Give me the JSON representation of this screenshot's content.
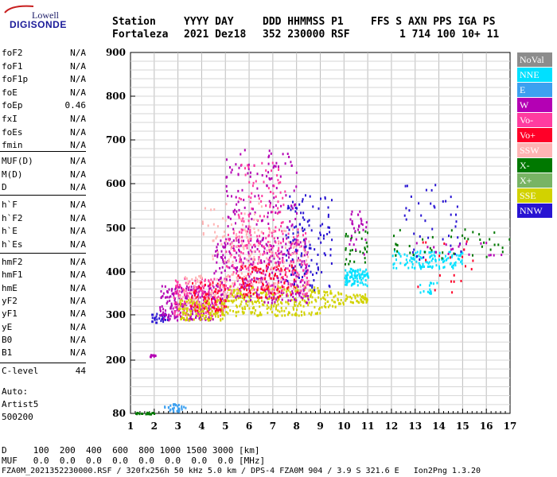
{
  "logo": {
    "top": "Lowell",
    "bottom": "DIGISONDE"
  },
  "header": {
    "labels": [
      "Station",
      "YYYY DAY",
      "DDD HHMMSS P1",
      "FFS S AXN PPS IGA PS"
    ],
    "values": [
      "Fortaleza",
      "2021 Dez18",
      "352 230000 RSF",
      "1 714 100 10+ 11"
    ]
  },
  "params": {
    "group1": [
      {
        "name": "foF2",
        "value": "N/A"
      },
      {
        "name": "foF1",
        "value": "N/A"
      },
      {
        "name": "foF1p",
        "value": "N/A"
      },
      {
        "name": "foE",
        "value": "N/A"
      },
      {
        "name": "foEp",
        "value": "0.46"
      },
      {
        "name": "fxI",
        "value": "N/A"
      },
      {
        "name": "foEs",
        "value": "N/A"
      },
      {
        "name": "fmin",
        "value": "N/A"
      }
    ],
    "group2": [
      {
        "name": "MUF(D)",
        "value": "N/A"
      },
      {
        "name": "M(D)",
        "value": "N/A"
      },
      {
        "name": "D",
        "value": "N/A"
      }
    ],
    "group3": [
      {
        "name": "h`F",
        "value": "N/A"
      },
      {
        "name": "h`F2",
        "value": "N/A"
      },
      {
        "name": "h`E",
        "value": "N/A"
      },
      {
        "name": "h`Es",
        "value": "N/A"
      }
    ],
    "group4": [
      {
        "name": "hmF2",
        "value": "N/A"
      },
      {
        "name": "hmF1",
        "value": "N/A"
      },
      {
        "name": "hmE",
        "value": "N/A"
      },
      {
        "name": "yF2",
        "value": "N/A"
      },
      {
        "name": "yF1",
        "value": "N/A"
      },
      {
        "name": "yE",
        "value": "N/A"
      },
      {
        "name": "B0",
        "value": "N/A"
      },
      {
        "name": "B1",
        "value": "N/A"
      }
    ],
    "clevel": {
      "name": "C-level",
      "value": "44"
    },
    "auto": [
      "Auto:",
      "Artist5",
      "500200"
    ]
  },
  "legend": [
    {
      "label": "NoVal",
      "color": "#8c8c8c"
    },
    {
      "label": "NNE",
      "color": "#00e0ff"
    },
    {
      "label": "E",
      "color": "#3ca0f0"
    },
    {
      "label": "W",
      "color": "#b400b4"
    },
    {
      "label": "Vo-",
      "color": "#ff3ca0"
    },
    {
      "label": "Vo+",
      "color": "#ff0028"
    },
    {
      "label": "SSW",
      "color": "#ffb4b4"
    },
    {
      "label": "X-",
      "color": "#007800"
    },
    {
      "label": "X+",
      "color": "#78b464"
    },
    {
      "label": "SSE",
      "color": "#d2d200"
    },
    {
      "label": "NNW",
      "color": "#2814d2"
    }
  ],
  "footer": {
    "line1": "D     100  200  400  600  800 1000 1500 3000 [km]",
    "line2": "MUF   0.0  0.0  0.0  0.0  0.0  0.0  0.0  0.0 [MHz]",
    "line3": "FZA0M_2021352230000.RSF / 320fx256h 50 kHz 5.0 km / DPS-4 FZA0M 904 / 3.9 S 321.6 E   Ion2Png 1.3.20"
  },
  "chart_data": {
    "type": "scatter",
    "xlim": [
      1,
      17
    ],
    "ylim": [
      80,
      900
    ],
    "x_ticks": [
      1,
      2,
      3,
      4,
      5,
      6,
      7,
      8,
      9,
      10,
      11,
      12,
      13,
      14,
      15,
      16,
      17
    ],
    "y_ticks": [
      80,
      200,
      300,
      400,
      500,
      600,
      700,
      800,
      900
    ],
    "xlabel": "",
    "ylabel": "",
    "grid": true,
    "clusters": [
      {
        "color": "#007800",
        "x": [
          1.1,
          2.0
        ],
        "y": [
          80,
          84
        ],
        "n": 20
      },
      {
        "color": "#3ca0f0",
        "x": [
          2.4,
          3.3
        ],
        "y": [
          86,
          104
        ],
        "n": 30
      },
      {
        "color": "#b400b4",
        "x": [
          1.8,
          2.2
        ],
        "y": [
          208,
          214
        ],
        "n": 8
      },
      {
        "color": "#2814d2",
        "x": [
          1.8,
          2.6
        ],
        "y": [
          285,
          305
        ],
        "n": 30
      },
      {
        "color": "#b400b4",
        "x": [
          2.2,
          4.5
        ],
        "y": [
          290,
          370
        ],
        "n": 230
      },
      {
        "color": "#ff3ca0",
        "x": [
          2.8,
          5.0
        ],
        "y": [
          300,
          390
        ],
        "n": 170
      },
      {
        "color": "#d2d200",
        "x": [
          3.0,
          5.0
        ],
        "y": [
          290,
          340
        ],
        "n": 140
      },
      {
        "color": "#ff0028",
        "x": [
          3.5,
          5.0
        ],
        "y": [
          310,
          380
        ],
        "n": 70
      },
      {
        "color": "#ffb4b4",
        "x": [
          3.0,
          5.5
        ],
        "y": [
          320,
          400
        ],
        "n": 80
      },
      {
        "color": "#d2d200",
        "x": [
          5.0,
          9.0
        ],
        "y": [
          300,
          370
        ],
        "n": 260
      },
      {
        "color": "#b400b4",
        "x": [
          4.5,
          8.5
        ],
        "y": [
          330,
          480
        ],
        "n": 320
      },
      {
        "color": "#ff3ca0",
        "x": [
          5.0,
          8.5
        ],
        "y": [
          350,
          500
        ],
        "n": 220
      },
      {
        "color": "#ff0028",
        "x": [
          5.5,
          8.0
        ],
        "y": [
          340,
          420
        ],
        "n": 110
      },
      {
        "color": "#ffb4b4",
        "x": [
          5.0,
          8.5
        ],
        "y": [
          350,
          500
        ],
        "n": 110
      },
      {
        "color": "#2814d2",
        "x": [
          7.5,
          9.5
        ],
        "y": [
          360,
          580
        ],
        "n": 110
      },
      {
        "color": "#b400b4",
        "x": [
          5.0,
          8.0
        ],
        "y": [
          500,
          680
        ],
        "n": 110
      },
      {
        "color": "#ff3ca0",
        "x": [
          5.5,
          7.5
        ],
        "y": [
          500,
          650
        ],
        "n": 70
      },
      {
        "color": "#ffb4b4",
        "x": [
          4.0,
          6.5
        ],
        "y": [
          420,
          560
        ],
        "n": 60
      },
      {
        "color": "#d2d200",
        "x": [
          9.0,
          10.0
        ],
        "y": [
          320,
          360
        ],
        "n": 40
      },
      {
        "color": "#00e0ff",
        "x": [
          10.0,
          11.0
        ],
        "y": [
          370,
          410
        ],
        "n": 90
      },
      {
        "color": "#d2d200",
        "x": [
          10.0,
          11.0
        ],
        "y": [
          330,
          350
        ],
        "n": 40
      },
      {
        "color": "#007800",
        "x": [
          10.0,
          11.0
        ],
        "y": [
          420,
          500
        ],
        "n": 30
      },
      {
        "color": "#b400b4",
        "x": [
          10.2,
          11.0
        ],
        "y": [
          440,
          540
        ],
        "n": 30
      },
      {
        "color": "#00e0ff",
        "x": [
          12.0,
          15.0
        ],
        "y": [
          410,
          450
        ],
        "n": 120
      },
      {
        "color": "#2814d2",
        "x": [
          12.5,
          15.0
        ],
        "y": [
          430,
          600
        ],
        "n": 40
      },
      {
        "color": "#007800",
        "x": [
          12.0,
          17.0
        ],
        "y": [
          430,
          500
        ],
        "n": 40
      },
      {
        "color": "#b400b4",
        "x": [
          13.0,
          17.0
        ],
        "y": [
          440,
          470
        ],
        "n": 20
      },
      {
        "color": "#00e0ff",
        "x": [
          13.0,
          14.0
        ],
        "y": [
          350,
          380
        ],
        "n": 15
      },
      {
        "color": "#ff0028",
        "x": [
          13.0,
          15.5
        ],
        "y": [
          350,
          480
        ],
        "n": 20
      }
    ]
  }
}
